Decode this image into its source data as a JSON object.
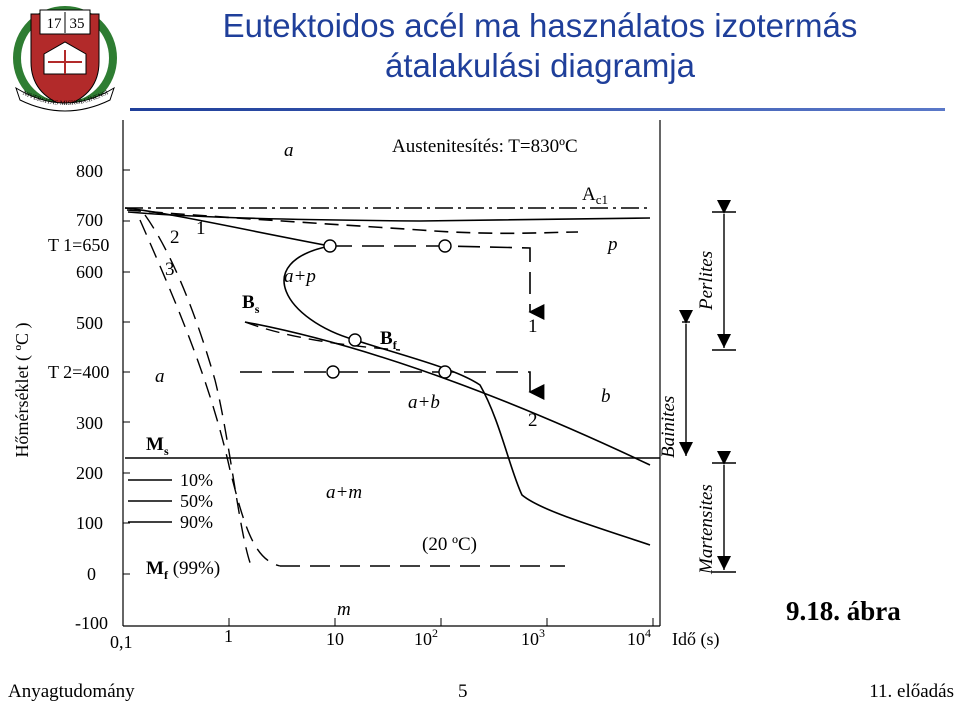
{
  "title_line1": "Eutektoidos acél ma használatos izotermás",
  "title_line2": "átalakulási diagramja",
  "logo": {
    "year_left": "17",
    "year_right": "35",
    "ribbon": "UNIVERSITAS MISKOLCINENSIS",
    "icon": "university-seal-icon",
    "colors": {
      "red": "#b22a2a",
      "green": "#2e7d32",
      "white": "#ffffff"
    }
  },
  "y_axis": {
    "label": "Hőmérséklet ( ºC )",
    "ticks": [
      "800",
      "700",
      "600",
      "500",
      "400",
      "300",
      "200",
      "100",
      "0",
      "-100"
    ],
    "t1": "T 1=650",
    "t2": "T 2=400"
  },
  "x_axis": {
    "ticks": [
      "0,1",
      "1",
      "10",
      "10",
      "10",
      "10"
    ],
    "exponents": [
      "",
      "",
      "",
      "2",
      "3",
      "4"
    ],
    "label": "Idő (s)"
  },
  "labels": {
    "austenitization": "Austenitesítés: T=830ºC",
    "ac1": "A c1",
    "a_top": "a",
    "a_p": "a+p",
    "p": "p",
    "bs": "B s",
    "bf": "B f",
    "a_b": "a+b",
    "b": "b",
    "a_left": "a",
    "ms": "M s",
    "a_m": "a+m",
    "mf": "M f (99%)",
    "m": "m",
    "room_temp": "(20 ºC)",
    "curve_1": "1",
    "curve_2": "2",
    "curve_3": "3",
    "path_1": "1",
    "path_2": "2"
  },
  "legend": [
    "10%",
    "50%",
    "90%"
  ],
  "side_labels": {
    "perlites": "Perlites",
    "bainites": "Bainites",
    "martensites": "Martensites"
  },
  "footer": {
    "left": "Anyagtudomány",
    "page": "5",
    "right": "11. előadás"
  },
  "figure_label": "9.18. ábra"
}
